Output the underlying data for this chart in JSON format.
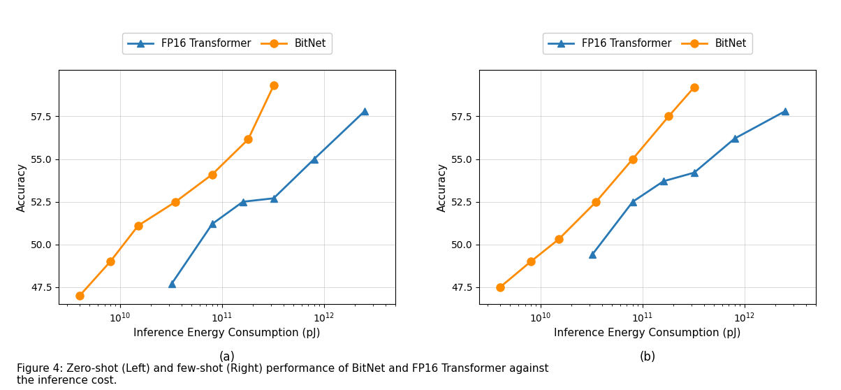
{
  "a_fp16_x": [
    32000000000.0,
    80000000000.0,
    160000000000.0,
    320000000000.0,
    800000000000.0,
    2500000000000.0
  ],
  "a_fp16_y": [
    47.7,
    51.2,
    52.5,
    52.7,
    55.0,
    57.8
  ],
  "a_bn_x": [
    4000000000.0,
    8000000000.0,
    15000000000.0,
    35000000000.0,
    80000000000.0,
    180000000000.0,
    320000000000.0
  ],
  "a_bn_y": [
    47.0,
    49.0,
    51.1,
    52.5,
    54.1,
    56.15,
    59.3
  ],
  "b_fp16_x": [
    32000000000.0,
    80000000000.0,
    160000000000.0,
    320000000000.0,
    800000000000.0,
    2500000000000.0
  ],
  "b_fp16_y": [
    49.4,
    52.5,
    53.7,
    54.2,
    56.2,
    57.8
  ],
  "b_bn_x": [
    4000000000.0,
    8000000000.0,
    15000000000.0,
    35000000000.0,
    80000000000.0,
    180000000000.0,
    320000000000.0
  ],
  "b_bn_y": [
    47.5,
    49.0,
    50.3,
    52.5,
    55.0,
    57.5,
    59.2
  ],
  "fp16_color": "#2878b5",
  "bitnet_color": "#ff8c00",
  "fp16_label": "FP16 Transformer",
  "bitnet_label": "BitNet",
  "ylabel": "Accuracy",
  "xlabel": "Inference Energy Consumption (pJ)",
  "ylim": [
    46.5,
    60.2
  ],
  "xlim": [
    2500000000.0,
    5000000000000.0
  ],
  "yticks": [
    47.5,
    50.0,
    52.5,
    55.0,
    57.5
  ],
  "xticks": [
    10000000000.0,
    100000000000.0,
    1000000000000.0
  ],
  "label_a": "(a)",
  "label_b": "(b)",
  "caption": "Figure 4: Zero-shot (Left) and few-shot (Right) performance of BitNet and FP16 Transformer against\nthe inference cost."
}
